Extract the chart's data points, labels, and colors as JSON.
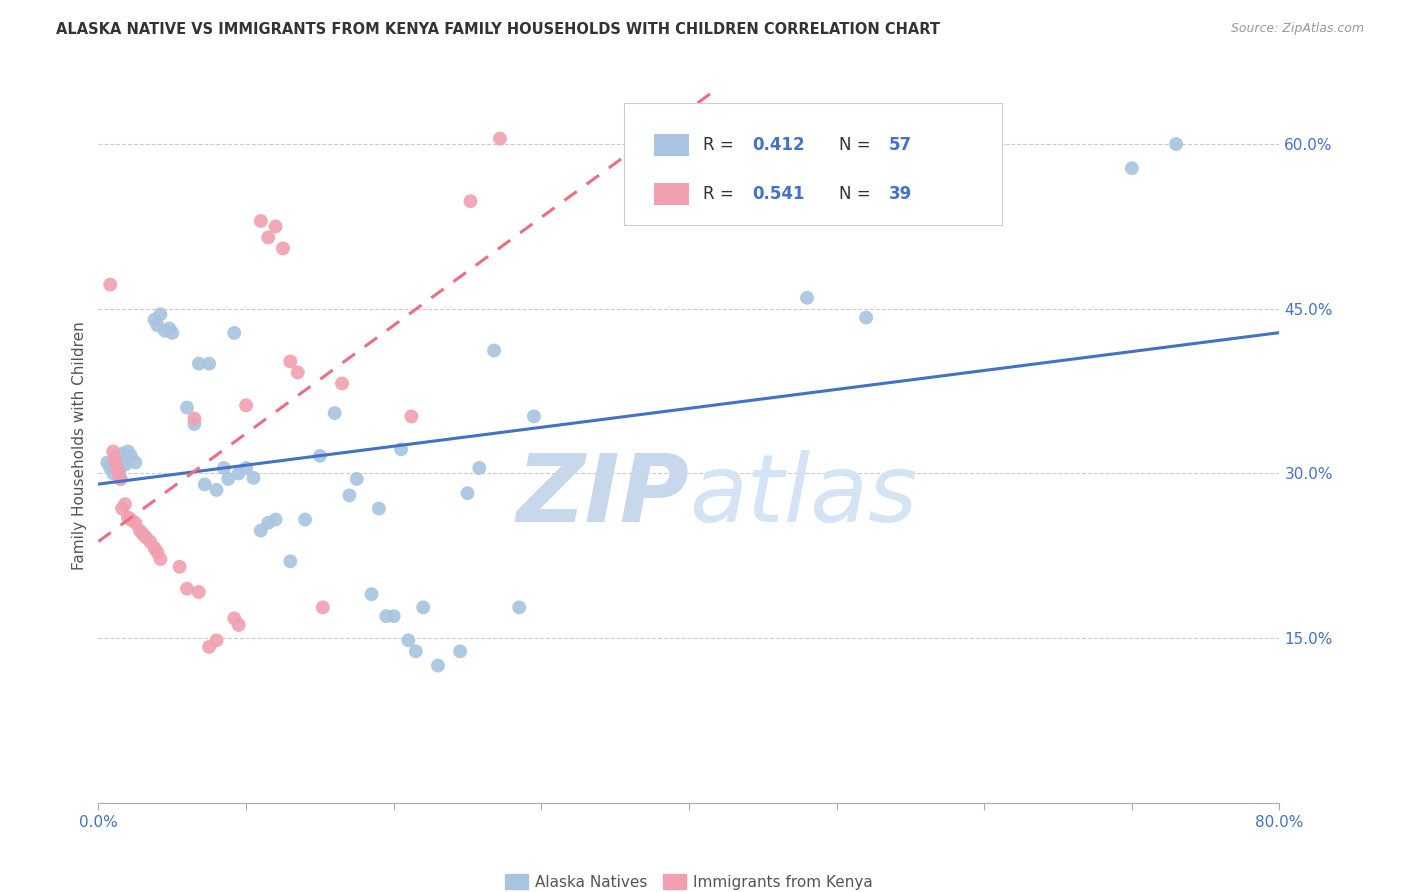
{
  "title": "ALASKA NATIVE VS IMMIGRANTS FROM KENYA FAMILY HOUSEHOLDS WITH CHILDREN CORRELATION CHART",
  "source": "Source: ZipAtlas.com",
  "ylabel": "Family Households with Children",
  "x_min": 0.0,
  "x_max": 0.8,
  "y_min": 0.0,
  "y_max": 0.65,
  "x_ticks": [
    0.0,
    0.1,
    0.2,
    0.3,
    0.4,
    0.5,
    0.6,
    0.7,
    0.8
  ],
  "y_ticks": [
    0.0,
    0.15,
    0.3,
    0.45,
    0.6
  ],
  "alaska_color": "#a8c4e0",
  "kenya_color": "#f0a0b0",
  "alaska_line_color": "#4472c4",
  "kenya_line_color": "#e87080",
  "blue_text_color": "#4472c4",
  "watermark_zip": "ZIP",
  "watermark_atlas": "atlas",
  "watermark_color": "#dce8f5",
  "alaska_points": [
    [
      0.006,
      0.31
    ],
    [
      0.008,
      0.305
    ],
    [
      0.009,
      0.308
    ],
    [
      0.01,
      0.3
    ],
    [
      0.011,
      0.315
    ],
    [
      0.012,
      0.31
    ],
    [
      0.013,
      0.305
    ],
    [
      0.014,
      0.302
    ],
    [
      0.015,
      0.295
    ],
    [
      0.016,
      0.318
    ],
    [
      0.017,
      0.312
    ],
    [
      0.018,
      0.308
    ],
    [
      0.02,
      0.32
    ],
    [
      0.022,
      0.316
    ],
    [
      0.025,
      0.31
    ],
    [
      0.038,
      0.44
    ],
    [
      0.04,
      0.435
    ],
    [
      0.042,
      0.445
    ],
    [
      0.045,
      0.43
    ],
    [
      0.048,
      0.432
    ],
    [
      0.05,
      0.428
    ],
    [
      0.06,
      0.36
    ],
    [
      0.065,
      0.345
    ],
    [
      0.068,
      0.4
    ],
    [
      0.072,
      0.29
    ],
    [
      0.075,
      0.4
    ],
    [
      0.08,
      0.285
    ],
    [
      0.085,
      0.305
    ],
    [
      0.088,
      0.295
    ],
    [
      0.092,
      0.428
    ],
    [
      0.095,
      0.3
    ],
    [
      0.1,
      0.305
    ],
    [
      0.105,
      0.296
    ],
    [
      0.11,
      0.248
    ],
    [
      0.115,
      0.255
    ],
    [
      0.12,
      0.258
    ],
    [
      0.13,
      0.22
    ],
    [
      0.14,
      0.258
    ],
    [
      0.15,
      0.316
    ],
    [
      0.16,
      0.355
    ],
    [
      0.17,
      0.28
    ],
    [
      0.175,
      0.295
    ],
    [
      0.185,
      0.19
    ],
    [
      0.19,
      0.268
    ],
    [
      0.195,
      0.17
    ],
    [
      0.2,
      0.17
    ],
    [
      0.205,
      0.322
    ],
    [
      0.21,
      0.148
    ],
    [
      0.215,
      0.138
    ],
    [
      0.22,
      0.178
    ],
    [
      0.23,
      0.125
    ],
    [
      0.245,
      0.138
    ],
    [
      0.25,
      0.282
    ],
    [
      0.258,
      0.305
    ],
    [
      0.268,
      0.412
    ],
    [
      0.285,
      0.178
    ],
    [
      0.295,
      0.352
    ],
    [
      0.48,
      0.46
    ],
    [
      0.52,
      0.442
    ],
    [
      0.7,
      0.578
    ],
    [
      0.73,
      0.6
    ]
  ],
  "kenya_points": [
    [
      0.008,
      0.472
    ],
    [
      0.01,
      0.32
    ],
    [
      0.011,
      0.312
    ],
    [
      0.012,
      0.308
    ],
    [
      0.013,
      0.302
    ],
    [
      0.014,
      0.298
    ],
    [
      0.015,
      0.295
    ],
    [
      0.016,
      0.268
    ],
    [
      0.018,
      0.272
    ],
    [
      0.02,
      0.26
    ],
    [
      0.022,
      0.258
    ],
    [
      0.025,
      0.255
    ],
    [
      0.028,
      0.248
    ],
    [
      0.03,
      0.245
    ],
    [
      0.032,
      0.242
    ],
    [
      0.035,
      0.238
    ],
    [
      0.038,
      0.232
    ],
    [
      0.04,
      0.228
    ],
    [
      0.042,
      0.222
    ],
    [
      0.055,
      0.215
    ],
    [
      0.06,
      0.195
    ],
    [
      0.065,
      0.35
    ],
    [
      0.068,
      0.192
    ],
    [
      0.075,
      0.142
    ],
    [
      0.08,
      0.148
    ],
    [
      0.092,
      0.168
    ],
    [
      0.095,
      0.162
    ],
    [
      0.1,
      0.362
    ],
    [
      0.11,
      0.53
    ],
    [
      0.115,
      0.515
    ],
    [
      0.12,
      0.525
    ],
    [
      0.125,
      0.505
    ],
    [
      0.13,
      0.402
    ],
    [
      0.135,
      0.392
    ],
    [
      0.152,
      0.178
    ],
    [
      0.165,
      0.382
    ],
    [
      0.212,
      0.352
    ],
    [
      0.252,
      0.548
    ],
    [
      0.272,
      0.605
    ]
  ]
}
